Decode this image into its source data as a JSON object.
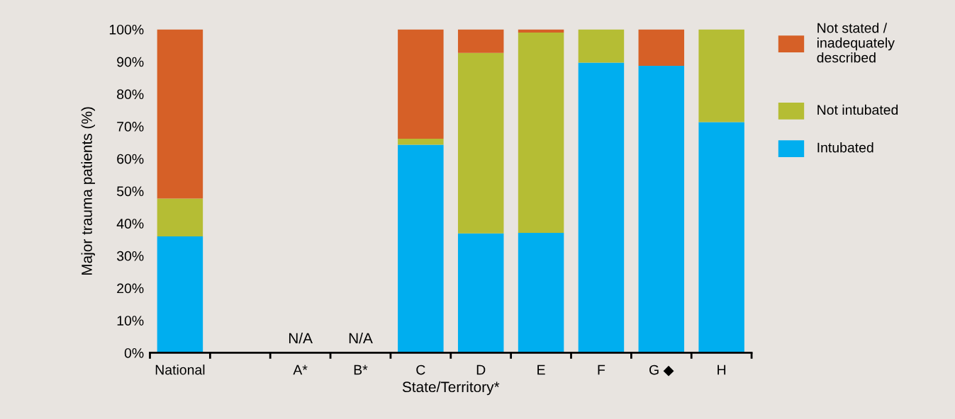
{
  "chart_data": {
    "type": "bar",
    "stacked": true,
    "categories": [
      "National",
      null,
      "A*",
      "B*",
      "C",
      "D",
      "E",
      "F",
      "G ◆",
      "H"
    ],
    "xlabel": "State/Territory*",
    "ylabel": "Major trauma patients (%)",
    "series": [
      {
        "name": "Intubated",
        "color": "#00aeef",
        "values": [
          36.0,
          null,
          null,
          null,
          64.3,
          36.9,
          37.1,
          89.7,
          88.7,
          71.3
        ]
      },
      {
        "name": "Not intubated",
        "color": "#b5bd34",
        "values": [
          11.7,
          null,
          null,
          null,
          1.9,
          55.8,
          61.9,
          10.3,
          0,
          28.7
        ]
      },
      {
        "name": "Not stated / inadequately described",
        "color": "#d66027",
        "values": [
          52.3,
          null,
          null,
          null,
          33.8,
          7.3,
          1.0,
          0,
          11.3,
          0
        ]
      }
    ],
    "ylim": [
      0,
      100
    ],
    "yticks": [
      {
        "value": 0,
        "label": "0%"
      },
      {
        "value": 10,
        "label": "10%"
      },
      {
        "value": 20,
        "label": "20%"
      },
      {
        "value": 30,
        "label": "30%"
      },
      {
        "value": 40,
        "label": "40%"
      },
      {
        "value": 50,
        "label": "50%"
      },
      {
        "value": 60,
        "label": "60%"
      },
      {
        "value": 70,
        "label": "70%"
      },
      {
        "value": 80,
        "label": "80%"
      },
      {
        "value": 90,
        "label": "90%"
      },
      {
        "value": 100,
        "label": "100%"
      }
    ],
    "annotations": [
      "N/A",
      "N/A"
    ],
    "grid": false,
    "legend": "right"
  }
}
